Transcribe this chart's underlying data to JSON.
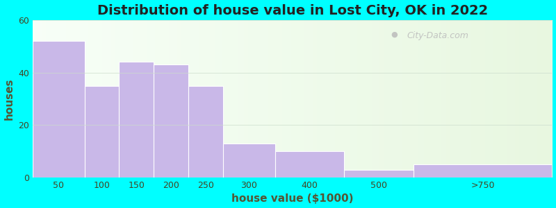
{
  "title": "Distribution of house value in Lost City, OK in 2022",
  "xlabel": "house value ($1000)",
  "ylabel": "houses",
  "bin_edges": [
    0,
    75,
    125,
    175,
    225,
    275,
    350,
    450,
    550,
    750
  ],
  "tick_positions": [
    37.5,
    100,
    150,
    200,
    250,
    312.5,
    400,
    500,
    650
  ],
  "tick_labels": [
    "50",
    "100",
    "150",
    "200",
    "250",
    "300",
    "400",
    "500",
    ">750"
  ],
  "values": [
    52,
    35,
    44,
    43,
    35,
    13,
    10,
    3,
    5
  ],
  "bar_color": "#c9b8e8",
  "bar_edgecolor": "#ffffff",
  "ylim": [
    0,
    60
  ],
  "yticks": [
    0,
    20,
    40,
    60
  ],
  "background_color": "#00ffff",
  "plot_bg_color": "#e8f5e2",
  "title_fontsize": 14,
  "axis_label_fontsize": 11,
  "tick_fontsize": 9,
  "title_color": "#222222",
  "axis_label_color": "#555533",
  "tick_color": "#444422",
  "watermark": "City-Data.com",
  "watermark_color": "#bbbbbb"
}
